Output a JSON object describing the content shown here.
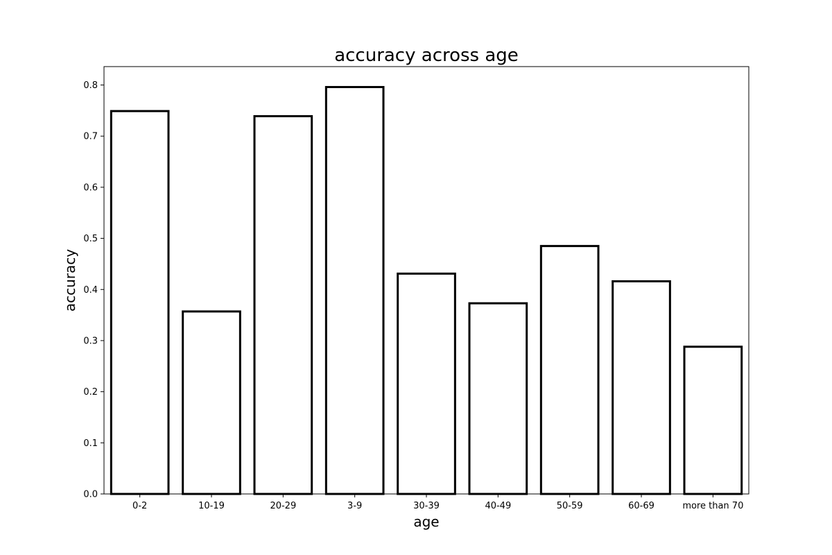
{
  "chart_data": {
    "type": "bar",
    "title": "accuracy across age",
    "xlabel": "age",
    "ylabel": "accuracy",
    "categories": [
      "0-2",
      "10-19",
      "20-29",
      "3-9",
      "30-39",
      "40-49",
      "50-59",
      "60-69",
      "more than 70"
    ],
    "values": [
      0.749,
      0.357,
      0.739,
      0.796,
      0.431,
      0.373,
      0.485,
      0.416,
      0.288
    ],
    "ylim": [
      0,
      0.836
    ],
    "yticks": [
      "0.0",
      "0.1",
      "0.2",
      "0.3",
      "0.4",
      "0.5",
      "0.6",
      "0.7",
      "0.8"
    ],
    "grid": false,
    "bar_fill": "#ffffff",
    "bar_edge": "#000000"
  }
}
